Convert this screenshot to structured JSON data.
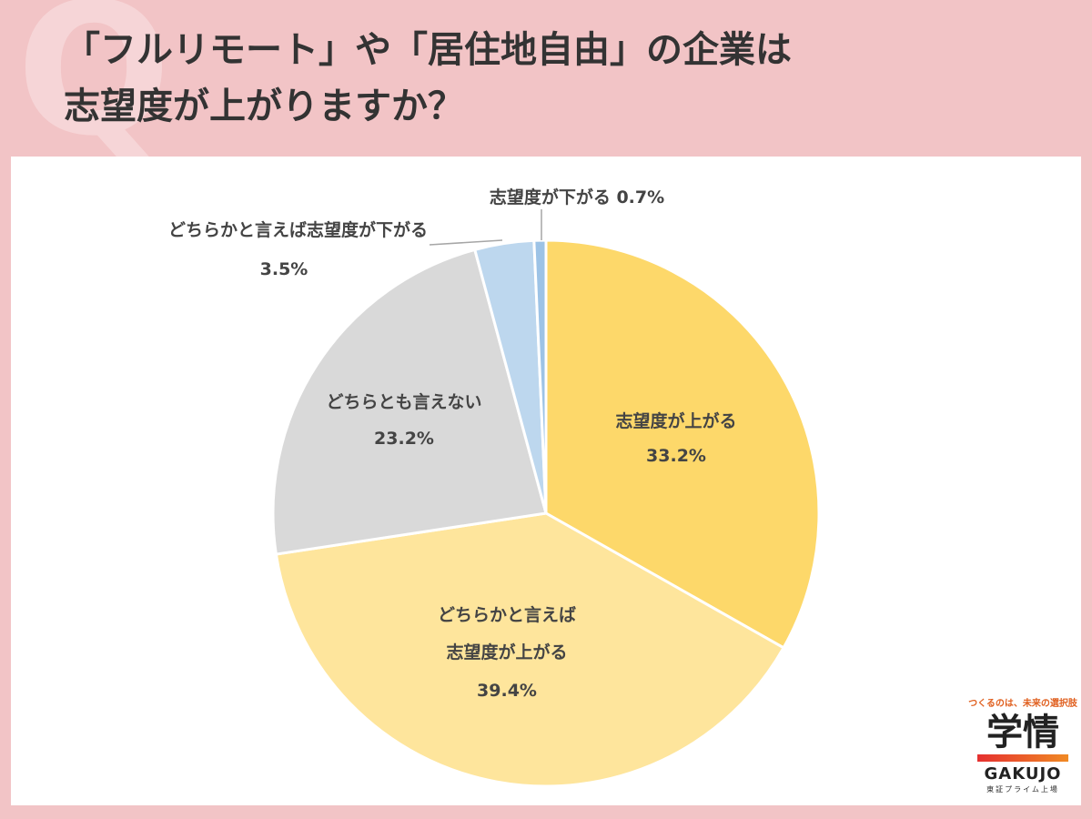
{
  "title": {
    "line1": "「フルリモート」や「居住地自由」の企業は",
    "line2": "志望度が上がりますか？"
  },
  "chart_data": {
    "type": "pie",
    "start_angle_deg": 0,
    "direction": "clockwise",
    "slices": [
      {
        "label": "志望度が上がる",
        "value": 33.2,
        "display": "33.2%",
        "color": "#fdd86a"
      },
      {
        "label": "どちらかと言えば志望度が上がる",
        "value": 39.4,
        "display": "39.4%",
        "color": "#fee59c"
      },
      {
        "label": "どちらとも言えない",
        "value": 23.2,
        "display": "23.2%",
        "color": "#d9d9d9"
      },
      {
        "label": "どちらかと言えば志望度が下がる",
        "value": 3.5,
        "display": "3.5%",
        "color": "#bdd7ee"
      },
      {
        "label": "志望度が下がる",
        "value": 0.7,
        "display": "0.7%",
        "color": "#9dc3e6"
      }
    ]
  },
  "labels": {
    "up": {
      "line1": "志望度が上がる",
      "pct": "33.2%"
    },
    "some_up": {
      "line1": "どちらかと言えば",
      "line2": "志望度が上がる",
      "pct": "39.4%"
    },
    "neutral": {
      "line1": "どちらとも言えない",
      "pct": "23.2%"
    },
    "some_down": {
      "line1": "どちらかと言えば志望度が下がる",
      "pct": "3.5%"
    },
    "down": {
      "line1": "志望度が下がる 0.7%"
    }
  },
  "logo": {
    "tagline": "つくるのは、未来の選択肢",
    "name": "学情",
    "name_en": "GAKUJO",
    "sub": "東証プライム上場"
  }
}
